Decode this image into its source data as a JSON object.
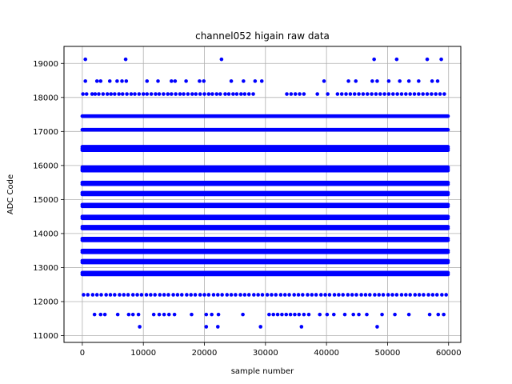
{
  "chart_data": {
    "type": "scatter",
    "title": "channel052 higain raw data",
    "xlabel": "sample number",
    "ylabel": "ADC Code",
    "xlim": [
      -3000,
      62000
    ],
    "ylim": [
      10800,
      19500
    ],
    "x_ticks": [
      0,
      10000,
      20000,
      30000,
      40000,
      50000,
      60000
    ],
    "y_ticks": [
      11000,
      12000,
      13000,
      14000,
      15000,
      16000,
      17000,
      18000,
      19000
    ],
    "grid": true,
    "marker": "circle",
    "color": "#0000ff",
    "x_range_samples": [
      0,
      59900
    ],
    "dense_levels": [
      12800,
      12850,
      13150,
      13200,
      13450,
      13500,
      13800,
      13850,
      14150,
      14200,
      14450,
      14500,
      14800,
      14850,
      15150,
      15200,
      15450,
      15500,
      15850,
      15900,
      15950,
      16450,
      16500,
      16550,
      17050,
      17450
    ],
    "sparse_levels": [
      {
        "y": 18100,
        "x": [
          100,
          700,
          1600,
          2100,
          2700,
          3400,
          4100,
          4700,
          5300,
          6000,
          6600,
          7300,
          8000,
          8600,
          9300,
          10000,
          10600,
          11300,
          12000,
          12600,
          13300,
          14000,
          14600,
          15300,
          16000,
          16600,
          17300,
          18000,
          18600,
          19300,
          20000,
          20700,
          21300,
          22000,
          22600,
          23400,
          24000,
          24700,
          25300,
          26000,
          26600,
          27300,
          28000,
          33500,
          34200,
          34900,
          35600,
          36300,
          38500,
          40200,
          41800,
          42500,
          43200,
          43900,
          44600,
          45300,
          46000,
          46700,
          47400,
          48100,
          48800,
          49500,
          50200,
          50900,
          51600,
          52300,
          53000,
          53700,
          54400,
          55100,
          55800,
          56500,
          57200,
          57900,
          58600,
          59300
        ]
      },
      {
        "y": 18480,
        "x": [
          500,
          2400,
          3000,
          4500,
          5700,
          6500,
          7200,
          10600,
          12400,
          14600,
          15200,
          17000,
          19200,
          19900,
          24400,
          26400,
          28300,
          29400,
          39600,
          43600,
          44800,
          47500,
          48300,
          50200,
          52000,
          53500,
          55100,
          57300,
          58200
        ]
      },
      {
        "y": 19120,
        "x": [
          500,
          7100,
          22800,
          47800,
          51500,
          56500,
          58800
        ]
      },
      {
        "y": 12200,
        "x": [
          200,
          900,
          1700,
          2400,
          3100,
          3900,
          4600,
          5300,
          6100,
          6800,
          7500,
          8300,
          9000,
          9700,
          10500,
          11200,
          11900,
          12700,
          13400,
          14100,
          14900,
          15600,
          16300,
          17100,
          17800,
          18500,
          19300,
          20000,
          20700,
          21500,
          22200,
          22900,
          23700,
          24400,
          25100,
          25900,
          26600,
          27300,
          28100,
          28800,
          29500,
          30300,
          31000,
          31700,
          32500,
          33200,
          33900,
          34700,
          35400,
          36100,
          36900,
          37600,
          38300,
          39100,
          39800,
          40500,
          41300,
          42000,
          42700,
          43500,
          44200,
          44900,
          45700,
          46400,
          47100,
          47900,
          48600,
          49300,
          50100,
          50800,
          51500,
          52300,
          53000,
          53700,
          54500,
          55200,
          55900,
          56700,
          57400,
          58100,
          58900,
          59600
        ]
      },
      {
        "y": 11620,
        "x": [
          2000,
          3000,
          3700,
          5800,
          7600,
          8300,
          9200,
          11700,
          12600,
          13400,
          14200,
          15100,
          17900,
          20300,
          21200,
          22300,
          26300,
          30600,
          31300,
          32000,
          32700,
          33400,
          34100,
          34800,
          35500,
          36300,
          37100,
          38900,
          40100,
          41200,
          43000,
          44400,
          45300,
          46600,
          49100,
          51200,
          53500,
          56900,
          58300,
          59200
        ]
      },
      {
        "y": 11260,
        "x": [
          9400,
          20300,
          22200,
          29200,
          35900,
          48300
        ]
      }
    ]
  }
}
